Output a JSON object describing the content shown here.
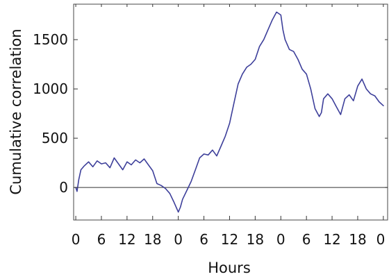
{
  "chart_data": {
    "type": "line",
    "title": "",
    "xlabel": "Hours",
    "ylabel": "Cumulative correlation",
    "xlim": [
      -0.5,
      73
    ],
    "ylim": [
      -330,
      1860
    ],
    "xticks": [
      0,
      6,
      12,
      18,
      24,
      30,
      36,
      42,
      48,
      54,
      60,
      66,
      72
    ],
    "xtick_labels": [
      "0",
      "6",
      "12",
      "18",
      "0",
      "6",
      "12",
      "18",
      "0",
      "6",
      "12",
      "18",
      "0"
    ],
    "yticks": [
      0,
      500,
      1000,
      1500
    ],
    "ytick_labels": [
      "0",
      "500",
      "1000",
      "1500"
    ],
    "zero_line": true,
    "grid": false,
    "series": [
      {
        "color": "#3d3f9a",
        "points": [
          [
            0,
            0
          ],
          [
            0.3,
            -40
          ],
          [
            0.7,
            80
          ],
          [
            1.2,
            180
          ],
          [
            2,
            220
          ],
          [
            3,
            260
          ],
          [
            4,
            210
          ],
          [
            5,
            270
          ],
          [
            6,
            240
          ],
          [
            7,
            250
          ],
          [
            8,
            200
          ],
          [
            9,
            300
          ],
          [
            10,
            240
          ],
          [
            11,
            180
          ],
          [
            12,
            260
          ],
          [
            13,
            230
          ],
          [
            14,
            280
          ],
          [
            15,
            250
          ],
          [
            16,
            290
          ],
          [
            17,
            230
          ],
          [
            18,
            170
          ],
          [
            19,
            40
          ],
          [
            20,
            20
          ],
          [
            21,
            -10
          ],
          [
            22,
            -60
          ],
          [
            23,
            -150
          ],
          [
            24,
            -250
          ],
          [
            24.5,
            -200
          ],
          [
            25,
            -120
          ],
          [
            26,
            -30
          ],
          [
            27,
            60
          ],
          [
            28,
            180
          ],
          [
            29,
            300
          ],
          [
            30,
            340
          ],
          [
            31,
            330
          ],
          [
            32,
            380
          ],
          [
            33,
            320
          ],
          [
            34,
            420
          ],
          [
            35,
            520
          ],
          [
            36,
            650
          ],
          [
            37,
            850
          ],
          [
            38,
            1050
          ],
          [
            39,
            1150
          ],
          [
            40,
            1220
          ],
          [
            41,
            1250
          ],
          [
            42,
            1300
          ],
          [
            43,
            1430
          ],
          [
            44,
            1500
          ],
          [
            45,
            1600
          ],
          [
            46,
            1700
          ],
          [
            47,
            1780
          ],
          [
            48,
            1750
          ],
          [
            48.5,
            1600
          ],
          [
            49,
            1500
          ],
          [
            50,
            1400
          ],
          [
            51,
            1380
          ],
          [
            52,
            1300
          ],
          [
            53,
            1200
          ],
          [
            54,
            1150
          ],
          [
            55,
            1000
          ],
          [
            56,
            800
          ],
          [
            57,
            720
          ],
          [
            57.5,
            760
          ],
          [
            58,
            900
          ],
          [
            59,
            950
          ],
          [
            60,
            900
          ],
          [
            61,
            820
          ],
          [
            62,
            740
          ],
          [
            63,
            900
          ],
          [
            64,
            940
          ],
          [
            65,
            880
          ],
          [
            66,
            1030
          ],
          [
            67,
            1100
          ],
          [
            68,
            1000
          ],
          [
            69,
            950
          ],
          [
            70,
            930
          ],
          [
            71,
            870
          ],
          [
            72,
            830
          ]
        ]
      }
    ]
  }
}
